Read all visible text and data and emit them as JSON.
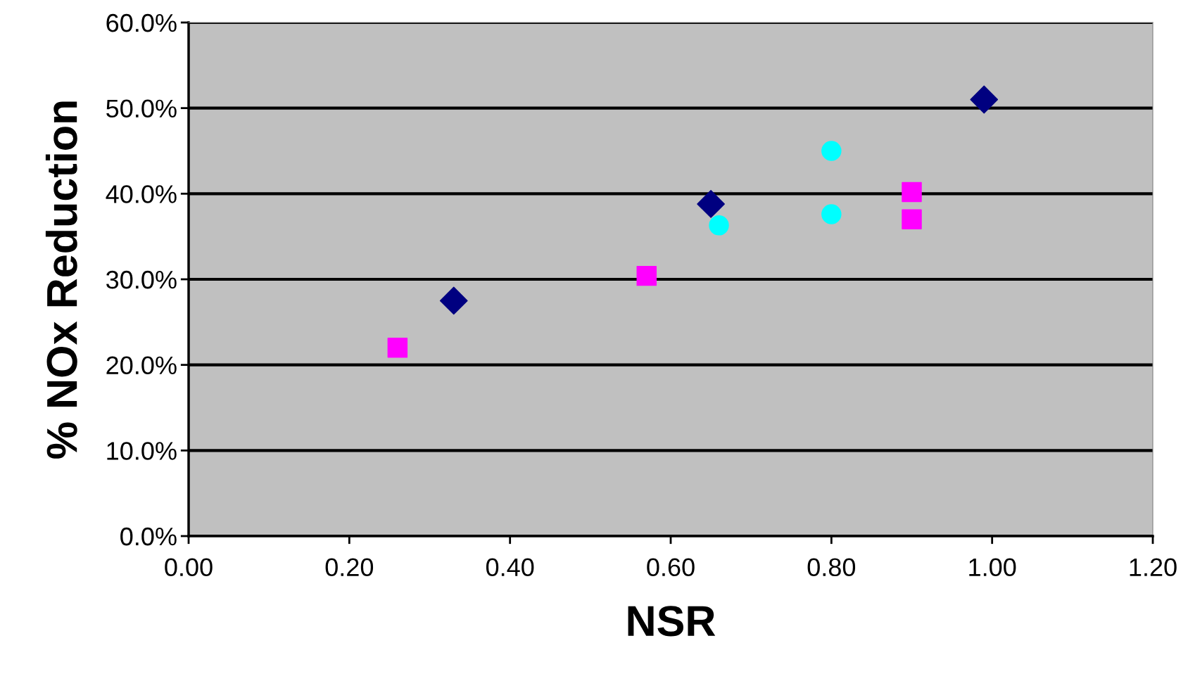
{
  "chart_data": {
    "type": "scatter",
    "xlabel": "NSR",
    "ylabel": "% NOx Reduction",
    "series": [
      {
        "color": "#000080",
        "marker": "diamond",
        "x": [
          0.33,
          0.65,
          0.99
        ],
        "values": [
          27.5,
          38.8,
          51.0
        ]
      },
      {
        "color": "#ff00ff",
        "marker": "square",
        "x": [
          0.26,
          0.57,
          0.9,
          0.9
        ],
        "values": [
          22.0,
          30.4,
          40.2,
          37.0
        ]
      },
      {
        "color": "#00ffff",
        "marker": "circle",
        "x": [
          0.66,
          0.8,
          0.8
        ],
        "values": [
          36.3,
          45.0,
          37.6
        ]
      }
    ],
    "xlim": [
      0,
      1.2
    ],
    "xticks": [
      {
        "value": 0,
        "label": "0.00"
      },
      {
        "value": 0.2,
        "label": "0.20"
      },
      {
        "value": 0.4,
        "label": "0.40"
      },
      {
        "value": 0.6,
        "label": "0.60"
      },
      {
        "value": 0.8,
        "label": "0.80"
      },
      {
        "value": 1.0,
        "label": "1.00"
      },
      {
        "value": 1.2,
        "label": "1.20"
      }
    ],
    "ylim": [
      0,
      60
    ],
    "yticks": [
      {
        "value": 0,
        "label": "0.0%"
      },
      {
        "value": 10,
        "label": "10.0%"
      },
      {
        "value": 20,
        "label": "20.0%"
      },
      {
        "value": 30,
        "label": "30.0%"
      },
      {
        "value": 40,
        "label": "40.0%"
      },
      {
        "value": 50,
        "label": "50.0%"
      },
      {
        "value": 60,
        "label": "60.0%"
      }
    ],
    "grid": "y"
  }
}
